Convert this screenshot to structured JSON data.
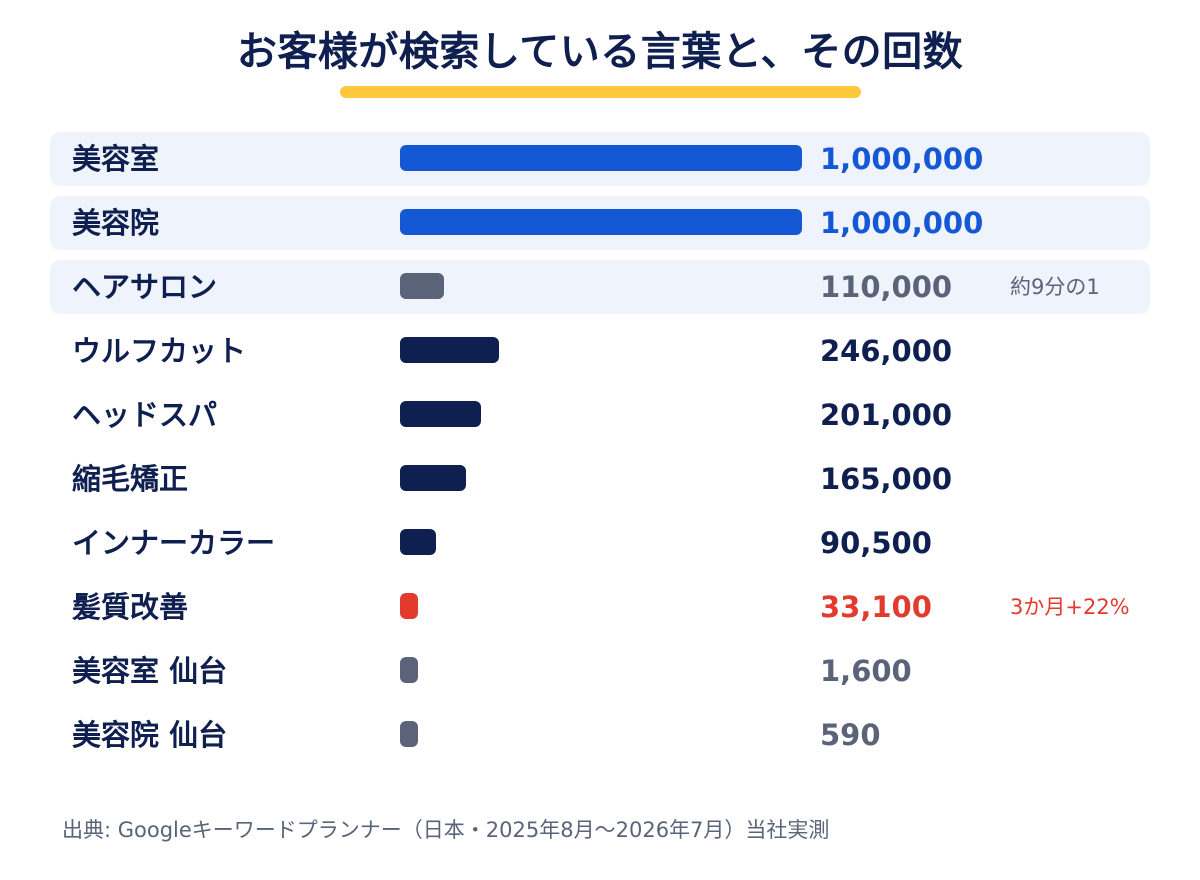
{
  "title": "お客様が検索している言葉と、その回数",
  "source": "出典: Googleキーワードプランナー（日本・2025年8月〜2026年7月）当社実測",
  "colors": {
    "title": "#0f1f4f",
    "underline": "#ffc83a",
    "highlight_bg": "#eef3fc",
    "blue": "#1558d6",
    "navy": "#0f1f4f",
    "slate": "#5b6379",
    "red": "#e23b2e"
  },
  "chart_data": {
    "type": "bar",
    "orientation": "horizontal",
    "xlim": [
      0,
      1000000
    ],
    "categories": [
      "美容室",
      "美容院",
      "ヘアサロン",
      "ウルフカット",
      "ヘッドスパ",
      "縮毛矯正",
      "インナーカラー",
      "髪質改善",
      "美容室 仙台",
      "美容院 仙台"
    ],
    "values": [
      1000000,
      1000000,
      110000,
      246000,
      201000,
      165000,
      90500,
      33100,
      1600,
      590
    ],
    "value_labels": [
      "1,000,000",
      "1,000,000",
      "110,000",
      "246,000",
      "201,000",
      "165,000",
      "90,500",
      "33,100",
      "1,600",
      "590"
    ],
    "annotations": [
      "",
      "",
      "約9分の1",
      "",
      "",
      "",
      "",
      "3か月+22%",
      "",
      ""
    ],
    "bar_colors": [
      "#1558d6",
      "#1558d6",
      "#5b6379",
      "#0f1f4f",
      "#0f1f4f",
      "#0f1f4f",
      "#0f1f4f",
      "#e23b2e",
      "#5b6379",
      "#5b6379"
    ],
    "value_colors": [
      "#1558d6",
      "#1558d6",
      "#5b6379",
      "#0f1f4f",
      "#0f1f4f",
      "#0f1f4f",
      "#0f1f4f",
      "#e23b2e",
      "#5b6379",
      "#5b6379"
    ],
    "annotation_colors": [
      "",
      "",
      "#5b6379",
      "",
      "",
      "",
      "",
      "#e23b2e",
      "",
      ""
    ],
    "highlighted_rows": [
      true,
      true,
      true,
      false,
      false,
      false,
      false,
      false,
      false,
      false
    ]
  }
}
